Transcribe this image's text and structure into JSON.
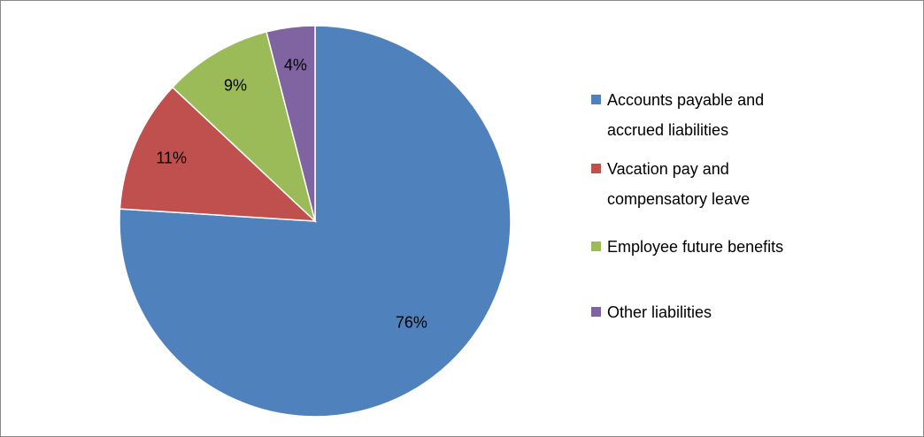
{
  "chart_data": {
    "type": "pie",
    "categories": [
      "Accounts payable and accrued liabilities",
      "Vacation pay and compensatory leave",
      "Employee future benefits",
      "Other liabilities"
    ],
    "values": [
      76,
      11,
      9,
      4
    ],
    "value_labels": [
      "76%",
      "11%",
      "9%",
      "4%"
    ],
    "colors": [
      "#4f81bd",
      "#c0504d",
      "#9bbb59",
      "#8064a2"
    ],
    "legend": "right"
  }
}
